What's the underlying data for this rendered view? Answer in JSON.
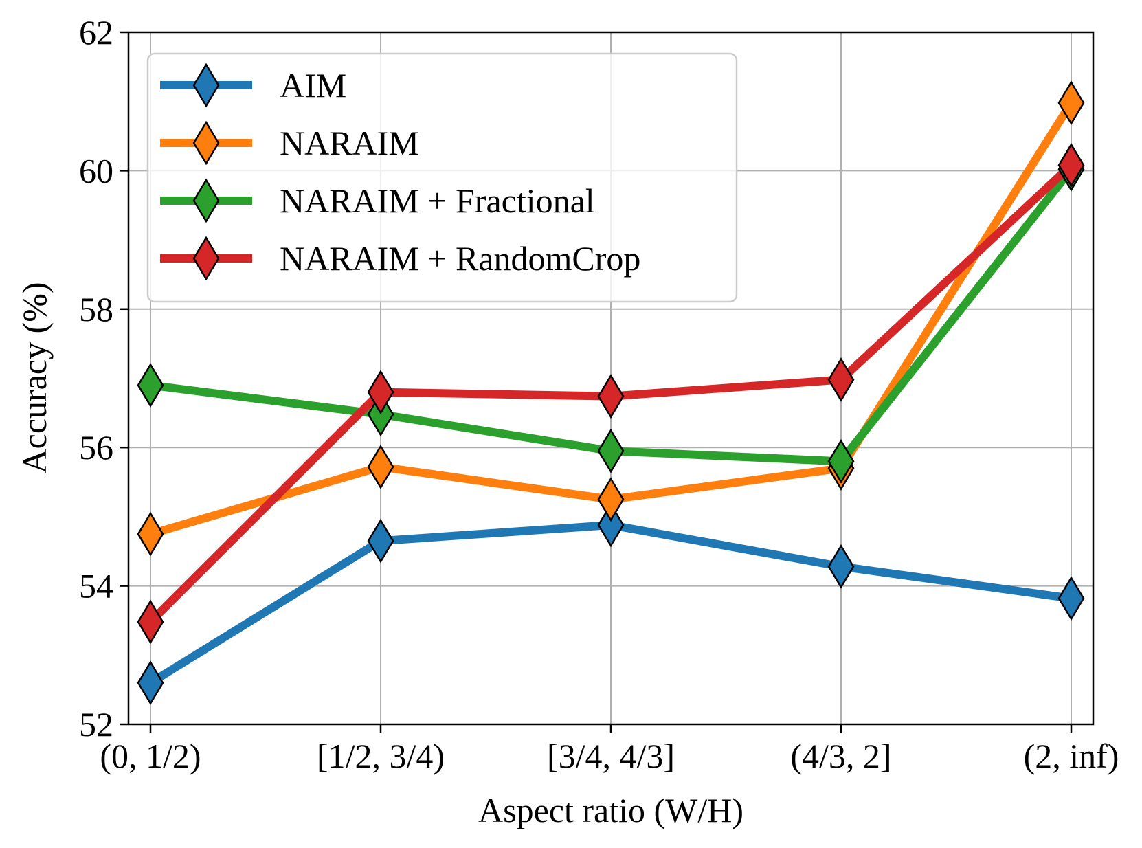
{
  "chart_data": {
    "type": "line",
    "title": "",
    "xlabel": "Aspect ratio (W/H)",
    "ylabel": "Accuracy (%)",
    "categories": [
      "(0, 1/2)",
      "[1/2, 3/4)",
      "[3/4, 4/3]",
      "(4/3, 2]",
      "(2, inf)"
    ],
    "ylim": [
      52,
      62
    ],
    "yticks": [
      "52",
      "54",
      "56",
      "58",
      "60",
      "62"
    ],
    "grid": true,
    "legend_position": "top-left",
    "marker": "diamond",
    "series": [
      {
        "name": "AIM",
        "color": "#1f77b4",
        "values": [
          52.6,
          54.65,
          54.88,
          54.28,
          53.82
        ]
      },
      {
        "name": "NARAIM",
        "color": "#ff7f0e",
        "values": [
          54.75,
          55.72,
          55.25,
          55.7,
          60.98
        ]
      },
      {
        "name": "NARAIM + Fractional",
        "color": "#2ca02c",
        "values": [
          56.9,
          56.48,
          55.95,
          55.8,
          60.02
        ]
      },
      {
        "name": "NARAIM + RandomCrop",
        "color": "#d62728",
        "values": [
          53.48,
          56.8,
          56.74,
          56.98,
          60.08
        ]
      }
    ]
  }
}
